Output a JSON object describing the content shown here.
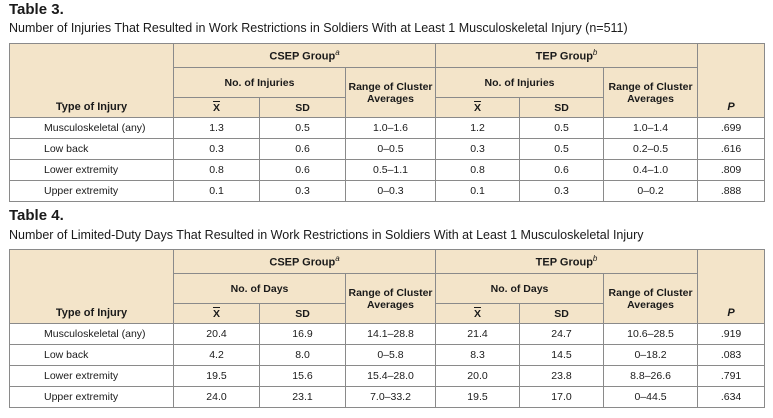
{
  "table3": {
    "title": "Table 3.",
    "caption": "Number of Injuries That Resulted in Work Restrictions in Soldiers With at Least 1 Musculoskeletal Injury (n=511)",
    "group_csep": "CSEP Group",
    "group_csep_sup": "a",
    "group_tep": "TEP Group",
    "group_tep_sup": "b",
    "count_label": "No. of Injuries",
    "range_label": "Range of Cluster Averages",
    "type_label": "Type of Injury",
    "mean_symbol": "X",
    "sd_label": "SD",
    "p_label": "P",
    "rows": [
      {
        "type": "Musculoskeletal (any)",
        "csep_mean": "1.3",
        "csep_sd": "0.5",
        "csep_range": "1.0–1.6",
        "tep_mean": "1.2",
        "tep_sd": "0.5",
        "tep_range": "1.0–1.4",
        "p": ".699"
      },
      {
        "type": "Low back",
        "csep_mean": "0.3",
        "csep_sd": "0.6",
        "csep_range": "0–0.5",
        "tep_mean": "0.3",
        "tep_sd": "0.5",
        "tep_range": "0.2–0.5",
        "p": ".616"
      },
      {
        "type": "Lower extremity",
        "csep_mean": "0.8",
        "csep_sd": "0.6",
        "csep_range": "0.5–1.1",
        "tep_mean": "0.8",
        "tep_sd": "0.6",
        "tep_range": "0.4–1.0",
        "p": ".809"
      },
      {
        "type": "Upper extremity",
        "csep_mean": "0.1",
        "csep_sd": "0.3",
        "csep_range": "0–0.3",
        "tep_mean": "0.1",
        "tep_sd": "0.3",
        "tep_range": "0–0.2",
        "p": ".888"
      }
    ]
  },
  "table4": {
    "title": "Table 4.",
    "caption": "Number of Limited-Duty Days That Resulted in Work Restrictions in Soldiers With at Least 1 Musculoskeletal Injury",
    "group_csep": "CSEP Group",
    "group_csep_sup": "a",
    "group_tep": "TEP Group",
    "group_tep_sup": "b",
    "count_label": "No. of Days",
    "range_label": "Range of Cluster Averages",
    "type_label": "Type of Injury",
    "mean_symbol": "X",
    "sd_label": "SD",
    "p_label": "P",
    "rows": [
      {
        "type": "Musculoskeletal (any)",
        "csep_mean": "20.4",
        "csep_sd": "16.9",
        "csep_range": "14.1–28.8",
        "tep_mean": "21.4",
        "tep_sd": "24.7",
        "tep_range": "10.6–28.5",
        "p": ".919"
      },
      {
        "type": "Low back",
        "csep_mean": "4.2",
        "csep_sd": "8.0",
        "csep_range": "0–5.8",
        "tep_mean": "8.3",
        "tep_sd": "14.5",
        "tep_range": "0–18.2",
        "p": ".083"
      },
      {
        "type": "Lower extremity",
        "csep_mean": "19.5",
        "csep_sd": "15.6",
        "csep_range": "15.4–28.0",
        "tep_mean": "20.0",
        "tep_sd": "23.8",
        "tep_range": "8.8–26.6",
        "p": ".791"
      },
      {
        "type": "Upper extremity",
        "csep_mean": "24.0",
        "csep_sd": "23.1",
        "csep_range": "7.0–33.2",
        "tep_mean": "19.5",
        "tep_sd": "17.0",
        "tep_range": "0–44.5",
        "p": ".634"
      }
    ]
  },
  "colors": {
    "header_fill": "#f3e4c9",
    "border": "#8a8a8a",
    "text": "#1a1a1a"
  }
}
